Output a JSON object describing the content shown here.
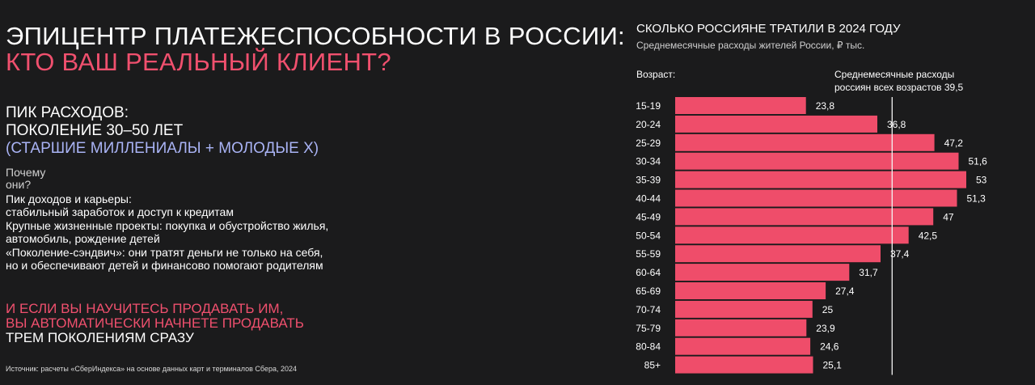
{
  "left": {
    "title_line1": "ЭПИЦЕНТР ПЛАТЕЖЕСПОСОБНОСТИ В РОССИИ:",
    "title_line2": "КТО ВАШ РЕАЛЬНЫЙ КЛИЕНТ?",
    "peak_line1": "ПИК РАСХОДОВ:",
    "peak_line2": "ПОКОЛЕНИЕ 30–50 ЛЕТ",
    "peak_line3": "(СТАРШИЕ МИЛЛЕНИАЛЫ + МОЛОДЫЕ Х)",
    "why_line1": "Почему",
    "why_line2": "они?",
    "reasons": [
      {
        "line1": "Пик доходов и карьеры:",
        "line2": "стабильный заработок и доступ к кредитам"
      },
      {
        "line1": "Крупные жизненные проекты: покупка и обустройство жилья,",
        "line2": "автомобиль, рождение детей"
      },
      {
        "line1": "«Поколение-сэндвич»: они тратят деньги не только на себя,",
        "line2": "но и обеспечивают детей и финансово помогают родителям"
      }
    ],
    "cta_line1": "И ЕСЛИ ВЫ НАУЧИТЕСЬ ПРОДАВАТЬ ИМ,",
    "cta_line2": "ВЫ АВТОМАТИЧЕСКИ НАЧНЕТЕ ПРОДАВАТЬ",
    "cta_line3": "ТРЕМ ПОКОЛЕНИЯМ СРАЗУ",
    "source": "Источник: расчеты «СберИндекса» на основе данных карт и терминалов Сбера, 2024"
  },
  "colors": {
    "background": "#1b1b1c",
    "accent_pink": "#f0506e",
    "accent_lavender": "#a9b3f4",
    "bar": "#ef4d6a"
  },
  "chart_data": {
    "type": "bar",
    "orientation": "horizontal",
    "title": "СКОЛЬКО РОССИЯНЕ ТРАТИЛИ В 2024 ГОДУ",
    "subtitle": "Среднемесячные расходы жителей России, ₽ тыс.",
    "ylabel": "Возраст:",
    "categories": [
      "15-19",
      "20-24",
      "25-29",
      "30-34",
      "35-39",
      "40-44",
      "45-49",
      "50-54",
      "55-59",
      "60-64",
      "65-69",
      "70-74",
      "75-79",
      "80-84",
      "85+"
    ],
    "values": [
      23.8,
      36.8,
      47.2,
      51.6,
      53,
      51.3,
      47,
      42.5,
      37.4,
      31.7,
      27.4,
      25,
      23.9,
      24.6,
      25.1
    ],
    "value_labels": [
      "23,8",
      "36,8",
      "47,2",
      "51,6",
      "53",
      "51,3",
      "47",
      "42,5",
      "37,4",
      "31,7",
      "27,4",
      "25",
      "23,9",
      "24,6",
      "25,1"
    ],
    "xlim": [
      0,
      53
    ],
    "reference_line": {
      "value": 39.5,
      "label_line1": "Среднемесячные расходы",
      "label_line2": "россиян всех возрастов 39,5"
    },
    "grid": false,
    "legend": "none"
  }
}
